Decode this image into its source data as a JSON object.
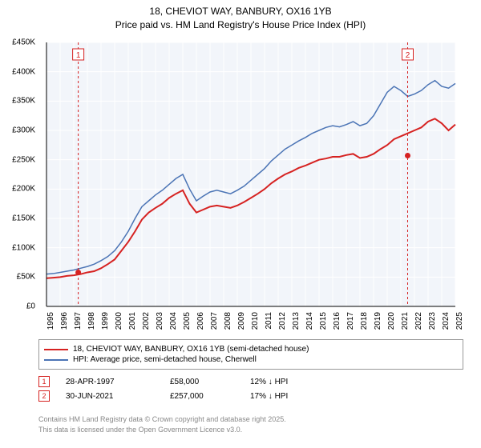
{
  "title_line1": "18, CHEVIOT WAY, BANBURY, OX16 1YB",
  "title_line2": "Price paid vs. HM Land Registry's House Price Index (HPI)",
  "chart": {
    "type": "line",
    "background_color": "#ffffff",
    "plot_background_color": "#f2f5fa",
    "grid_color": "#ffffff",
    "axis_color": "#000000",
    "x_years": [
      "1995",
      "1996",
      "1997",
      "1998",
      "1999",
      "2000",
      "2001",
      "2002",
      "2003",
      "2004",
      "2005",
      "2006",
      "2007",
      "2008",
      "2009",
      "2010",
      "2011",
      "2012",
      "2013",
      "2014",
      "2015",
      "2016",
      "2017",
      "2018",
      "2019",
      "2020",
      "2021",
      "2022",
      "2023",
      "2024",
      "2025"
    ],
    "x_font_size": 10,
    "y_ticks": [
      0,
      50000,
      100000,
      150000,
      200000,
      250000,
      300000,
      350000,
      400000,
      450000
    ],
    "y_tick_labels": [
      "£0",
      "£50K",
      "£100K",
      "£150K",
      "£200K",
      "£250K",
      "£300K",
      "£350K",
      "£400K",
      "£450K"
    ],
    "y_font_size": 10,
    "ylim": [
      0,
      450000
    ],
    "series": [
      {
        "name": "property",
        "label": "18, CHEVIOT WAY, BANBURY, OX16 1YB (semi-detached house)",
        "color": "#d62221",
        "line_width": 2,
        "values": [
          48,
          49,
          50,
          52,
          53,
          55,
          58,
          60,
          65,
          72,
          80,
          95,
          110,
          128,
          148,
          160,
          168,
          175,
          185,
          192,
          198,
          175,
          160,
          165,
          170,
          172,
          170,
          168,
          172,
          178,
          185,
          192,
          200,
          210,
          218,
          225,
          230,
          236,
          240,
          245,
          250,
          252,
          255,
          255,
          258,
          260,
          253,
          255,
          260,
          268,
          275,
          285,
          290,
          295,
          300,
          305,
          315,
          320,
          312,
          300,
          310
        ]
      },
      {
        "name": "hpi",
        "label": "HPI: Average price, semi-detached house, Cherwell",
        "color": "#4b74b5",
        "line_width": 1.5,
        "values": [
          55,
          56,
          58,
          60,
          62,
          65,
          68,
          72,
          78,
          85,
          95,
          110,
          128,
          150,
          170,
          180,
          190,
          198,
          208,
          218,
          225,
          200,
          180,
          188,
          195,
          198,
          195,
          192,
          198,
          205,
          215,
          225,
          235,
          248,
          258,
          268,
          275,
          282,
          288,
          295,
          300,
          305,
          308,
          306,
          310,
          315,
          308,
          312,
          325,
          345,
          365,
          375,
          368,
          358,
          362,
          368,
          378,
          385,
          375,
          372,
          380
        ]
      }
    ],
    "sale_markers": [
      {
        "num": "1",
        "year_idx": 2.33,
        "value": 58,
        "color": "#d62221",
        "date": "28-APR-1997",
        "price": "£58,000",
        "delta": "12% ↓ HPI"
      },
      {
        "num": "2",
        "year_idx": 26.5,
        "value": 257,
        "color": "#d62221",
        "date": "30-JUN-2021",
        "price": "£257,000",
        "delta": "17% ↓ HPI"
      }
    ]
  },
  "legend_title": "",
  "footer_line1": "Contains HM Land Registry data © Crown copyright and database right 2025.",
  "footer_line2": "This data is licensed under the Open Government Licence v3.0."
}
